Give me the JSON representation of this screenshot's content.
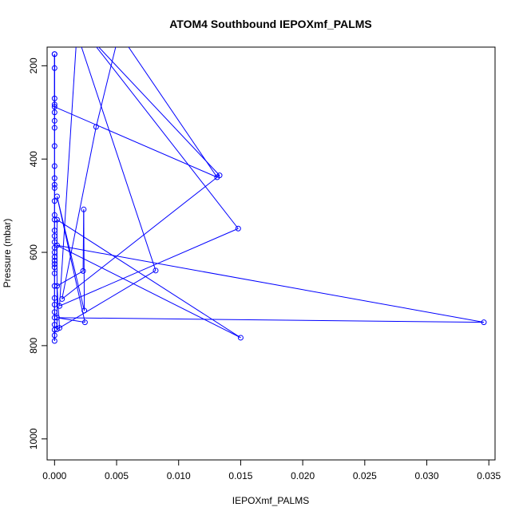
{
  "chart_data": {
    "type": "line",
    "title": "ATOM4 Southbound IEPOXmf_PALMS",
    "xlabel": "IEPOXmf_PALMS",
    "ylabel": "Pressure (mbar)",
    "xlim": [
      -0.0006,
      0.0355
    ],
    "ylim": [
      1045,
      160
    ],
    "y_reversed": true,
    "x_ticks": [
      "0.000",
      "0.005",
      "0.010",
      "0.015",
      "0.020",
      "0.025",
      "0.030",
      "0.035"
    ],
    "y_ticks": [
      "200",
      "400",
      "600",
      "800",
      "1000"
    ],
    "grid": false,
    "legend": "none",
    "series_color": "#0000ff",
    "series": [
      {
        "points": [
          [
            0.0,
            175
          ],
          [
            0.0,
            205
          ],
          [
            0.0,
            270
          ],
          [
            0.0,
            283
          ],
          [
            0.0,
            300
          ],
          [
            0.0,
            318
          ],
          [
            0.0,
            333
          ],
          [
            0.0,
            372
          ],
          [
            0.0,
            415
          ],
          [
            0.0,
            441
          ],
          [
            0.0,
            455
          ],
          [
            0.0,
            462
          ],
          [
            0.0,
            490
          ],
          [
            0.0,
            520
          ],
          [
            0.0,
            530
          ],
          [
            0.0,
            553
          ],
          [
            0.0,
            565
          ],
          [
            0.0,
            578
          ],
          [
            0.0,
            590
          ],
          [
            0.0,
            600
          ],
          [
            0.0,
            610
          ],
          [
            0.0,
            618
          ],
          [
            0.0,
            625
          ],
          [
            0.0,
            632
          ],
          [
            0.0,
            645
          ],
          [
            0.0,
            672
          ],
          [
            0.0,
            698
          ],
          [
            0.0,
            712
          ],
          [
            0.0,
            728
          ],
          [
            0.0,
            740
          ],
          [
            0.0,
            755
          ],
          [
            0.0,
            766
          ],
          [
            0.0,
            778
          ],
          [
            0.0,
            790
          ],
          [
            0.0,
            175
          ],
          [
            0.0,
            288
          ],
          [
            0.0131,
            439
          ],
          [
            0.0052,
            130
          ],
          [
            0.00335,
            331
          ],
          [
            0.0006,
            700
          ],
          [
            0.0133,
            435
          ],
          [
            0.0025,
            130
          ],
          [
            0.0148,
            549
          ],
          [
            0.0004,
            715
          ],
          [
            0.0018,
            130
          ],
          [
            0.00815,
            639
          ],
          [
            0.0002,
            765
          ],
          [
            0.0002,
            530
          ],
          [
            0.015,
            783
          ],
          [
            0.0002,
            585
          ],
          [
            0.0346,
            750
          ],
          [
            0.0002,
            740
          ],
          [
            0.00245,
            750
          ],
          [
            0.0002,
            480
          ],
          [
            0.0024,
            725
          ],
          [
            0.00235,
            508
          ],
          [
            0.0023,
            640
          ],
          [
            0.0002,
            672
          ],
          [
            0.0004,
            762
          ]
        ]
      }
    ]
  }
}
